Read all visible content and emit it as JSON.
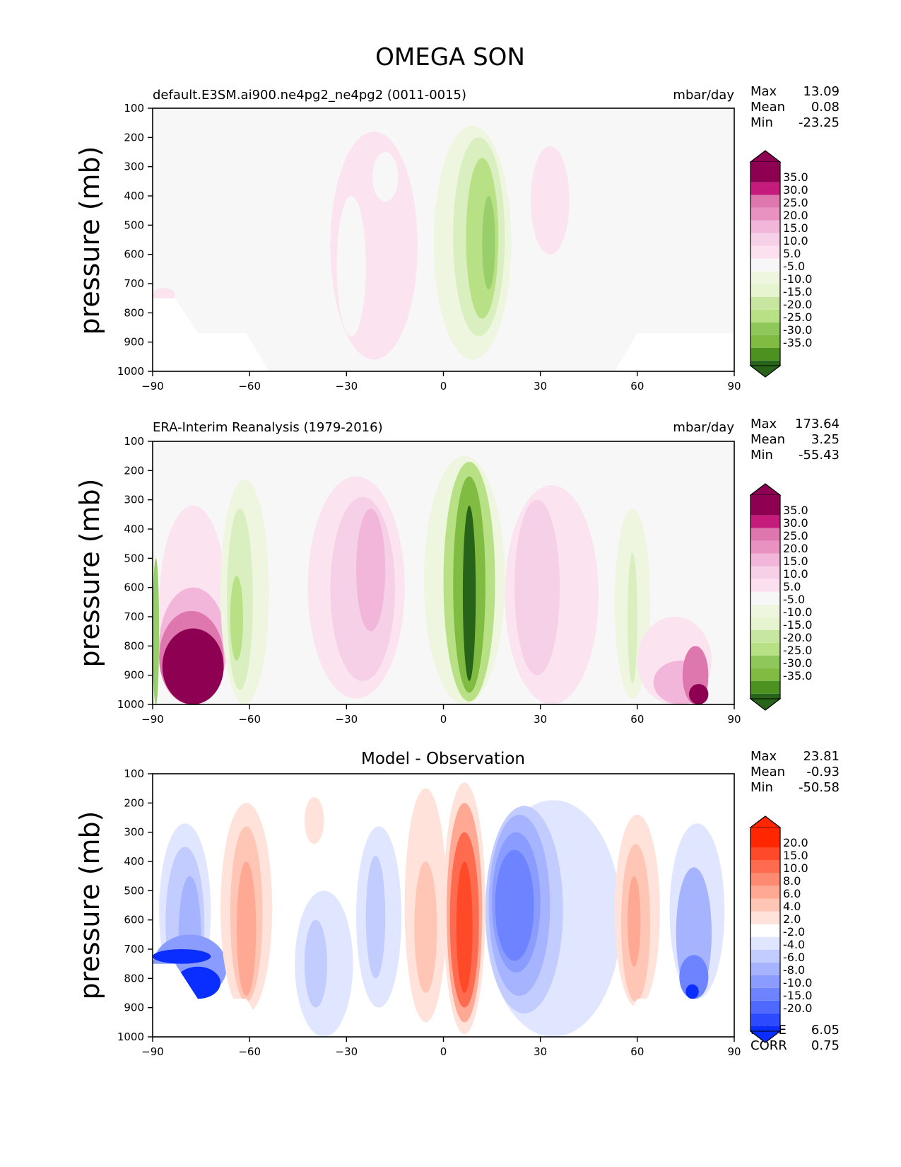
{
  "title": "OMEGA SON",
  "chart_data": [
    {
      "type": "contour",
      "title": "default.E3SM.ai900.ne4pg2_ne4pg2 (0011-0015)",
      "units": "mbar/day",
      "xlabel": "",
      "ylabel": "pressure (mb)",
      "xlim": [
        -90,
        90
      ],
      "ylim": [
        1000,
        100
      ],
      "xticks": [
        "−90",
        "−60",
        "−30",
        "0",
        "30",
        "60",
        "90"
      ],
      "yticks": [
        "100",
        "200",
        "300",
        "400",
        "500",
        "600",
        "700",
        "800",
        "900",
        "1000"
      ],
      "stats": [
        {
          "label": "Max",
          "value": "13.09"
        },
        {
          "label": "Mean",
          "value": "0.08"
        },
        {
          "label": "Min",
          "value": "-23.25"
        }
      ],
      "colorbar_labels": [
        "35.0",
        "30.0",
        "25.0",
        "20.0",
        "15.0",
        "10.0",
        "5.0",
        "-5.0",
        "-10.0",
        "-15.0",
        "-20.0",
        "-25.0",
        "-30.0",
        "-35.0"
      ],
      "colorbar_colors": [
        "#8e0152",
        "#c51b7d",
        "#de77ae",
        "#e991c1",
        "#f1b6da",
        "#f6d0e6",
        "#fde0ef",
        "#f7f7f7",
        "#eef6e0",
        "#e6f5d0",
        "#c7e6a0",
        "#b8e186",
        "#8fc85a",
        "#7fbc41",
        "#4d9221",
        "#276419"
      ],
      "features": [
        {
          "x0": -35,
          "x1": -8,
          "ptop": 180,
          "pbot": 960,
          "level": 5
        },
        {
          "x0": -33,
          "x1": -24,
          "ptop": 400,
          "pbot": 880,
          "level": 4
        },
        {
          "x0": -22,
          "x1": -14,
          "ptop": 250,
          "pbot": 420,
          "level": 4
        },
        {
          "x0": -3,
          "x1": 21,
          "ptop": 160,
          "pbot": 960,
          "level": -5
        },
        {
          "x0": 3,
          "x1": 19,
          "ptop": 200,
          "pbot": 880,
          "level": -10
        },
        {
          "x0": 7,
          "x1": 17,
          "ptop": 270,
          "pbot": 820,
          "level": -15
        },
        {
          "x0": 12,
          "x1": 16,
          "ptop": 400,
          "pbot": 720,
          "level": -20
        },
        {
          "x0": 27,
          "x1": 39,
          "ptop": 230,
          "pbot": 600,
          "level": 5
        },
        {
          "x0": -90,
          "x1": -83,
          "ptop": 715,
          "pbot": 760,
          "level": 5
        }
      ]
    },
    {
      "type": "contour",
      "title": "ERA-Interim Reanalysis (1979-2016)",
      "units": "mbar/day",
      "xlabel": "",
      "ylabel": "pressure (mb)",
      "xlim": [
        -90,
        90
      ],
      "ylim": [
        1000,
        100
      ],
      "xticks": [
        "−90",
        "−60",
        "−30",
        "0",
        "30",
        "60",
        "90"
      ],
      "yticks": [
        "100",
        "200",
        "300",
        "400",
        "500",
        "600",
        "700",
        "800",
        "900",
        "1000"
      ],
      "stats": [
        {
          "label": "Max",
          "value": "173.64"
        },
        {
          "label": "Mean",
          "value": "3.25"
        },
        {
          "label": "Min",
          "value": "-55.43"
        }
      ],
      "colorbar_labels": [
        "35.0",
        "30.0",
        "25.0",
        "20.0",
        "15.0",
        "10.0",
        "5.0",
        "-5.0",
        "-10.0",
        "-15.0",
        "-20.0",
        "-25.0",
        "-30.0",
        "-35.0"
      ],
      "colorbar_colors": [
        "#8e0152",
        "#c51b7d",
        "#de77ae",
        "#e991c1",
        "#f1b6da",
        "#f6d0e6",
        "#fde0ef",
        "#f7f7f7",
        "#eef6e0",
        "#e6f5d0",
        "#c7e6a0",
        "#b8e186",
        "#8fc85a",
        "#7fbc41",
        "#4d9221",
        "#276419"
      ],
      "features": [
        {
          "x0": -88,
          "x1": -67,
          "ptop": 320,
          "pbot": 1000,
          "level": 5
        },
        {
          "x0": -88,
          "x1": -67,
          "ptop": 600,
          "pbot": 1000,
          "level": 15
        },
        {
          "x0": -88,
          "x1": -68,
          "ptop": 680,
          "pbot": 1000,
          "level": 25
        },
        {
          "x0": -87,
          "x1": -68,
          "ptop": 740,
          "pbot": 1000,
          "level": 40
        },
        {
          "x0": -90,
          "x1": -88,
          "ptop": 500,
          "pbot": 1000,
          "level": -20
        },
        {
          "x0": -69,
          "x1": -54,
          "ptop": 230,
          "pbot": 1000,
          "level": -5
        },
        {
          "x0": -67,
          "x1": -59,
          "ptop": 330,
          "pbot": 950,
          "level": -10
        },
        {
          "x0": -66,
          "x1": -62,
          "ptop": 560,
          "pbot": 850,
          "level": -15
        },
        {
          "x0": -42,
          "x1": -12,
          "ptop": 220,
          "pbot": 980,
          "level": 5
        },
        {
          "x0": -35,
          "x1": -15,
          "ptop": 290,
          "pbot": 920,
          "level": 10
        },
        {
          "x0": -27,
          "x1": -18,
          "ptop": 330,
          "pbot": 750,
          "level": 15
        },
        {
          "x0": -6,
          "x1": 19,
          "ptop": 150,
          "pbot": 1000,
          "level": -5
        },
        {
          "x0": 0,
          "x1": 16,
          "ptop": 170,
          "pbot": 990,
          "level": -15
        },
        {
          "x0": 3,
          "x1": 13,
          "ptop": 220,
          "pbot": 960,
          "level": -25
        },
        {
          "x0": 6,
          "x1": 10,
          "ptop": 320,
          "pbot": 920,
          "level": -35
        },
        {
          "x0": 19,
          "x1": 48,
          "ptop": 250,
          "pbot": 1000,
          "level": 5
        },
        {
          "x0": 22,
          "x1": 36,
          "ptop": 300,
          "pbot": 900,
          "level": 10
        },
        {
          "x0": 53,
          "x1": 64,
          "ptop": 330,
          "pbot": 980,
          "level": -5
        },
        {
          "x0": 57,
          "x1": 60,
          "ptop": 480,
          "pbot": 930,
          "level": -10
        },
        {
          "x0": 60,
          "x1": 83,
          "ptop": 700,
          "pbot": 1000,
          "level": 5
        },
        {
          "x0": 65,
          "x1": 82,
          "ptop": 850,
          "pbot": 1000,
          "level": 15
        },
        {
          "x0": 74,
          "x1": 82,
          "ptop": 800,
          "pbot": 1000,
          "level": 25
        },
        {
          "x0": 76,
          "x1": 82,
          "ptop": 930,
          "pbot": 1000,
          "level": 35
        }
      ]
    },
    {
      "type": "contour",
      "title": "Model - Observation",
      "units": "",
      "xlabel": "",
      "ylabel": "pressure (mb)",
      "xlim": [
        -90,
        90
      ],
      "ylim": [
        1000,
        100
      ],
      "xticks": [
        "−90",
        "−60",
        "−30",
        "0",
        "30",
        "60",
        "90"
      ],
      "yticks": [
        "100",
        "200",
        "300",
        "400",
        "500",
        "600",
        "700",
        "800",
        "900",
        "1000"
      ],
      "stats": [
        {
          "label": "Max",
          "value": "23.81"
        },
        {
          "label": "Mean",
          "value": "-0.93"
        },
        {
          "label": "Min",
          "value": "-50.58"
        }
      ],
      "footer_stats": [
        {
          "label": "RMSE",
          "value": "6.05"
        },
        {
          "label": "CORR",
          "value": "0.75"
        }
      ],
      "colorbar_labels": [
        "20.0",
        "15.0",
        "10.0",
        "8.0",
        "6.0",
        "4.0",
        "2.0",
        "-2.0",
        "-4.0",
        "-6.0",
        "-8.0",
        "-10.0",
        "-15.0",
        "-20.0"
      ],
      "colorbar_colors": [
        "#ff2600",
        "#ff4a2a",
        "#ff6b4f",
        "#ff8a72",
        "#ffa894",
        "#ffc6b6",
        "#ffe2d9",
        "#ffffff",
        "#e0e6ff",
        "#c2ccff",
        "#a6b4ff",
        "#8a9cff",
        "#6d83ff",
        "#4f69ff",
        "#2c4bff",
        "#0a2eff"
      ],
      "features": [
        {
          "x0": -88,
          "x1": -72,
          "ptop": 270,
          "pbot": 870,
          "level": -3
        },
        {
          "x0": -86,
          "x1": -74,
          "ptop": 350,
          "pbot": 870,
          "level": -5
        },
        {
          "x0": -82,
          "x1": -75,
          "ptop": 450,
          "pbot": 870,
          "level": -7
        },
        {
          "x0": -90,
          "x1": -67,
          "ptop": 650,
          "pbot": 870,
          "level": -9
        },
        {
          "x0": -90,
          "x1": -72,
          "ptop": 700,
          "pbot": 750,
          "level": -25
        },
        {
          "x0": -83,
          "x1": -69,
          "ptop": 760,
          "pbot": 870,
          "level": -25
        },
        {
          "x0": -69,
          "x1": -53,
          "ptop": 200,
          "pbot": 920,
          "level": 3
        },
        {
          "x0": -66,
          "x1": -56,
          "ptop": 280,
          "pbot": 880,
          "level": 5
        },
        {
          "x0": -64,
          "x1": -58,
          "ptop": 400,
          "pbot": 860,
          "level": 7
        },
        {
          "x0": -46,
          "x1": -28,
          "ptop": 500,
          "pbot": 1000,
          "level": -3
        },
        {
          "x0": -43,
          "x1": -36,
          "ptop": 600,
          "pbot": 900,
          "level": -5
        },
        {
          "x0": -27,
          "x1": -13,
          "ptop": 280,
          "pbot": 900,
          "level": -3
        },
        {
          "x0": -24,
          "x1": -18,
          "ptop": 380,
          "pbot": 800,
          "level": -5
        },
        {
          "x0": -43,
          "x1": -37,
          "ptop": 180,
          "pbot": 340,
          "level": 3
        },
        {
          "x0": -12,
          "x1": 1,
          "ptop": 150,
          "pbot": 950,
          "level": 3
        },
        {
          "x0": -9,
          "x1": -2,
          "ptop": 400,
          "pbot": 850,
          "level": 5
        },
        {
          "x0": 0,
          "x1": 13,
          "ptop": 130,
          "pbot": 990,
          "level": 3
        },
        {
          "x0": 1,
          "x1": 12,
          "ptop": 200,
          "pbot": 950,
          "level": 7
        },
        {
          "x0": 2,
          "x1": 11,
          "ptop": 300,
          "pbot": 900,
          "level": 12
        },
        {
          "x0": 4,
          "x1": 9,
          "ptop": 400,
          "pbot": 850,
          "level": 17
        },
        {
          "x0": 13,
          "x1": 55,
          "ptop": 190,
          "pbot": 1000,
          "level": -3
        },
        {
          "x0": 13,
          "x1": 37,
          "ptop": 210,
          "pbot": 920,
          "level": -5
        },
        {
          "x0": 14,
          "x1": 33,
          "ptop": 240,
          "pbot": 860,
          "level": -7
        },
        {
          "x0": 15,
          "x1": 30,
          "ptop": 300,
          "pbot": 780,
          "level": -9
        },
        {
          "x0": 16,
          "x1": 28,
          "ptop": 360,
          "pbot": 740,
          "level": -12
        },
        {
          "x0": 53,
          "x1": 67,
          "ptop": 240,
          "pbot": 900,
          "level": 3
        },
        {
          "x0": 55,
          "x1": 64,
          "ptop": 340,
          "pbot": 880,
          "level": 5
        },
        {
          "x0": 57,
          "x1": 61,
          "ptop": 450,
          "pbot": 760,
          "level": 7
        },
        {
          "x0": 70,
          "x1": 87,
          "ptop": 270,
          "pbot": 870,
          "level": -3
        },
        {
          "x0": 72,
          "x1": 83,
          "ptop": 420,
          "pbot": 870,
          "level": -7
        },
        {
          "x0": 73,
          "x1": 82,
          "ptop": 720,
          "pbot": 870,
          "level": -12
        },
        {
          "x0": 75,
          "x1": 79,
          "ptop": 820,
          "pbot": 870,
          "level": -25
        }
      ]
    }
  ]
}
